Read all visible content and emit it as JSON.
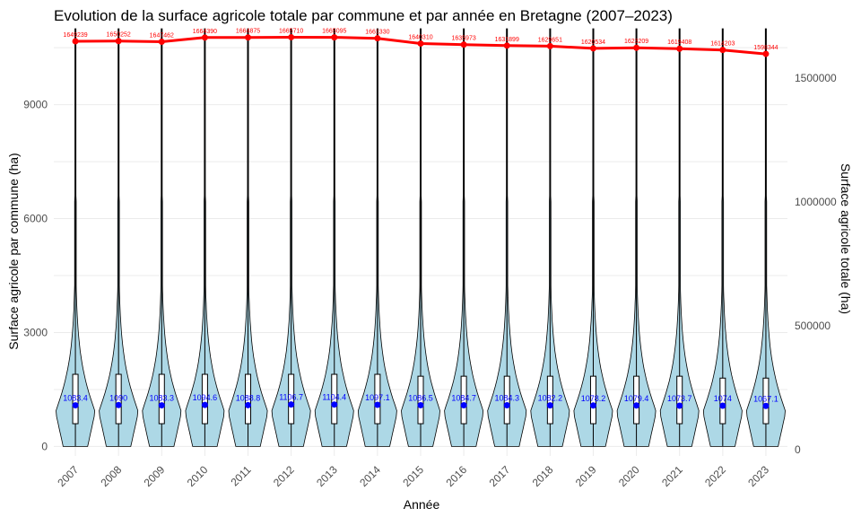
{
  "chart_data": {
    "type": "violin",
    "title": "Evolution de la surface agricole totale par commune et par année en Bretagne (2007–2023)",
    "xlabel": "Année",
    "ylabel": "Surface agricole par commune (ha)",
    "y2label": "Surface agricole totale (ha)",
    "categories": [
      "2007",
      "2008",
      "2009",
      "2010",
      "2011",
      "2012",
      "2013",
      "2014",
      "2015",
      "2016",
      "2017",
      "2018",
      "2019",
      "2020",
      "2021",
      "2022",
      "2023"
    ],
    "ylim": [
      -250,
      11000
    ],
    "yticks": [
      0,
      3000,
      6000,
      9000
    ],
    "y2lim": [
      -25000,
      1700000
    ],
    "y2ticks": [
      0,
      500000,
      1000000,
      1500000
    ],
    "mean_labels": [
      "1083.4",
      "1090",
      "1083.3",
      "1094.6",
      "1088.8",
      "1106.7",
      "1104.4",
      "1097.1",
      "1086.5",
      "1084.7",
      "1084.3",
      "1082.2",
      "1078.2",
      "1079.4",
      "1073.7",
      "1074",
      "1067.1"
    ],
    "mean_values": [
      1083.4,
      1090,
      1083.3,
      1094.6,
      1088.8,
      1106.7,
      1104.4,
      1097.1,
      1086.5,
      1084.7,
      1084.3,
      1082.2,
      1078.2,
      1079.4,
      1073.7,
      1074,
      1067.1
    ],
    "totals": [
      1649239,
      1650252,
      1647462,
      1664390,
      1664875,
      1665710,
      1665095,
      1661330,
      1640310,
      1635973,
      1631899,
      1629651,
      1620534,
      1623209,
      1619408,
      1614203,
      1598344
    ],
    "quartiles": [
      [
        600,
        1900
      ],
      [
        600,
        1900
      ],
      [
        600,
        1900
      ],
      [
        600,
        1900
      ],
      [
        600,
        1900
      ],
      [
        600,
        1900
      ],
      [
        600,
        1900
      ],
      [
        600,
        1900
      ],
      [
        600,
        1850
      ],
      [
        600,
        1850
      ],
      [
        600,
        1850
      ],
      [
        600,
        1850
      ],
      [
        600,
        1850
      ],
      [
        600,
        1850
      ],
      [
        600,
        1850
      ],
      [
        600,
        1800
      ],
      [
        600,
        1800
      ]
    ],
    "maxima": [
      11000,
      11000,
      11000,
      11000,
      11000,
      11000,
      11000,
      11000,
      11000,
      11000,
      11000,
      11000,
      11000,
      11000,
      11000,
      11000,
      11000
    ],
    "colors": {
      "violin_fill": "#add8e6",
      "mean": "#0000ff",
      "total": "#ff0000",
      "grid": "#ebebeb"
    },
    "grid": true,
    "legend": "none"
  }
}
